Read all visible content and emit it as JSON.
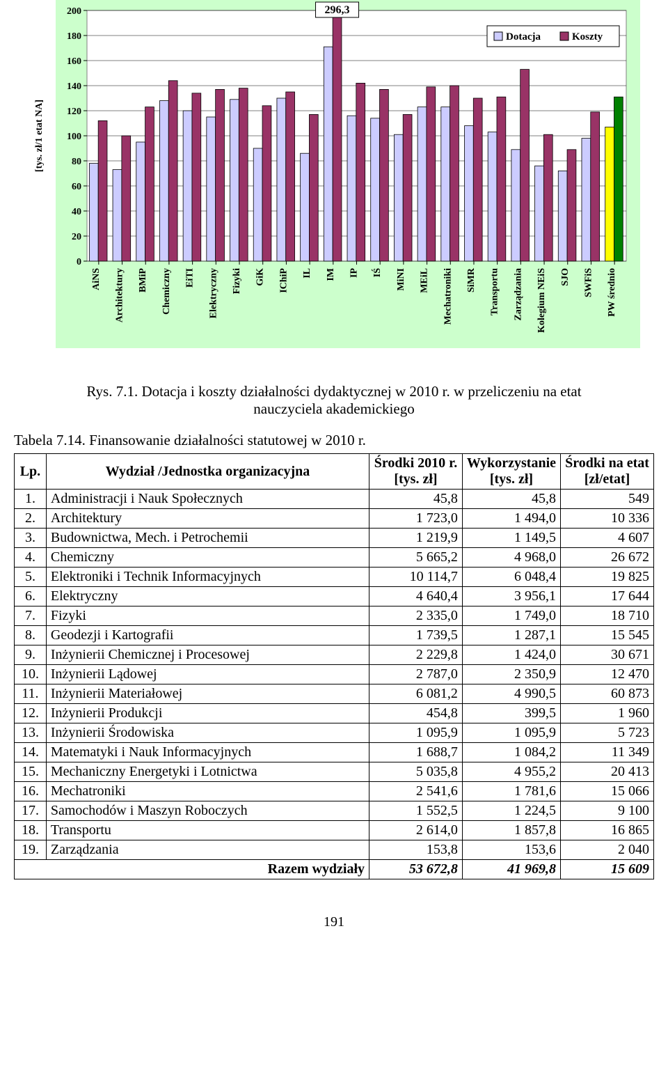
{
  "chart": {
    "type": "bar",
    "background_color": "#ccffcc",
    "plot_bg": "#ffffff",
    "grid_color": "#000000",
    "ylabel": "[tys. zł/1 etat NA]",
    "ylim": [
      0,
      200
    ],
    "ytick_step": 20,
    "yticks": [
      0,
      20,
      40,
      60,
      80,
      100,
      120,
      140,
      160,
      180,
      200
    ],
    "bar_colors": {
      "dotacja": "#ccccff",
      "koszty": "#993366"
    },
    "bar_border": "#000000",
    "callout": "296,3",
    "callout_fontsize": 16,
    "legend": {
      "labels": [
        "Dotacja",
        "Koszty"
      ],
      "fill": [
        "#ccccff",
        "#993366"
      ]
    },
    "avg_colors": {
      "dotacja": "#ffff00",
      "koszty": "#008000"
    },
    "label_fontsize": 14,
    "tick_fontsize": 14,
    "xlabels": [
      "AiNS",
      "Architektury",
      "BMiP",
      "Chemiczny",
      "EiTI",
      "Elektryczny",
      "Fizyki",
      "GiK",
      "IChiP",
      "IL",
      "IM",
      "IP",
      "IŚ",
      "MiNI",
      "MEiL",
      "Mechatroniki",
      "SiMR",
      "Transportu",
      "Zarządzania",
      "Kolegium NEiS",
      "SJO",
      "SWFiS",
      "PW średnio"
    ],
    "series": {
      "dotacja": [
        78,
        73,
        95,
        128,
        120,
        115,
        129,
        90,
        130,
        86,
        171,
        116,
        114,
        101,
        123,
        123,
        108,
        103,
        89,
        76,
        72,
        98,
        107
      ],
      "koszty": [
        112,
        100,
        123,
        144,
        134,
        137,
        138,
        124,
        135,
        117,
        296.3,
        142,
        137,
        117,
        139,
        140,
        130,
        131,
        153,
        101,
        89,
        119,
        131
      ]
    },
    "axis_font_weight": "bold"
  },
  "caption": {
    "prefix": "Rys. 7.1. ",
    "line1": "Dotacja i koszty działalności dydaktycznej w 2010 r. w przeliczeniu na etat",
    "line2": "nauczyciela akademickiego"
  },
  "tableTitle": "Tabela 7.14. Finansowanie działalności statutowej w 2010 r.",
  "table": {
    "headers": {
      "lp": "Lp.",
      "name": "Wydział /Jednostka organizacyjna",
      "c1a": "Środki 2010 r.",
      "c1b": "[tys. zł]",
      "c2a": "Wykorzystanie",
      "c2b": "[tys. zł]",
      "c3a": "Środki na etat",
      "c3b": "[zł/etat]"
    },
    "rows": [
      [
        "1.",
        "Administracji i Nauk Społecznych",
        "45,8",
        "45,8",
        "549"
      ],
      [
        "2.",
        "Architektury",
        "1 723,0",
        "1 494,0",
        "10 336"
      ],
      [
        "3.",
        "Budownictwa, Mech. i Petrochemii",
        "1 219,9",
        "1 149,5",
        "4 607"
      ],
      [
        "4.",
        "Chemiczny",
        "5 665,2",
        "4 968,0",
        "26 672"
      ],
      [
        "5.",
        "Elektroniki i Technik Informacyjnych",
        "10 114,7",
        "6 048,4",
        "19 825"
      ],
      [
        "6.",
        "Elektryczny",
        "4 640,4",
        "3 956,1",
        "17 644"
      ],
      [
        "7.",
        "Fizyki",
        "2 335,0",
        "1 749,0",
        "18 710"
      ],
      [
        "8.",
        "Geodezji i Kartografii",
        "1 739,5",
        "1 287,1",
        "15 545"
      ],
      [
        "9.",
        "Inżynierii Chemicznej i Procesowej",
        "2 229,8",
        "1 424,0",
        "30 671"
      ],
      [
        "10.",
        "Inżynierii Lądowej",
        "2 787,0",
        "2 350,9",
        "12 470"
      ],
      [
        "11.",
        "Inżynierii Materiałowej",
        "6 081,2",
        "4 990,5",
        "60 873"
      ],
      [
        "12.",
        "Inżynierii Produkcji",
        "454,8",
        "399,5",
        "1 960"
      ],
      [
        "13.",
        "Inżynierii Środowiska",
        "1 095,9",
        "1 095,9",
        "5 723"
      ],
      [
        "14.",
        "Matematyki i Nauk Informacyjnych",
        "1 688,7",
        "1 084,2",
        "11 349"
      ],
      [
        "15.",
        "Mechaniczny Energetyki i Lotnictwa",
        "5 035,8",
        "4 955,2",
        "20 413"
      ],
      [
        "16.",
        "Mechatroniki",
        "2 541,6",
        "1 781,6",
        "15 066"
      ],
      [
        "17.",
        "Samochodów i Maszyn Roboczych",
        "1 552,5",
        "1 224,5",
        "9 100"
      ],
      [
        "18.",
        "Transportu",
        "2 614,0",
        "1 857,8",
        "16 865"
      ],
      [
        "19.",
        "Zarządzania",
        "153,8",
        "153,6",
        "2 040"
      ]
    ],
    "sumRow": [
      "",
      "Razem wydziały",
      "53 672,8",
      "41 969,8",
      "15 609"
    ]
  },
  "pageNumber": "191"
}
